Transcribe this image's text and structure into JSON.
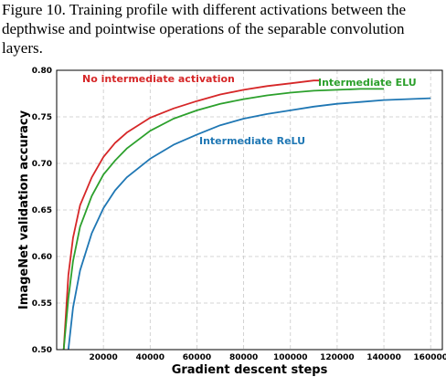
{
  "caption": "Figure 10. Training profile with different activations between the depthwise and pointwise operations of the separable convolution layers.",
  "chart_data": {
    "type": "line",
    "xlabel": "Gradient descent steps",
    "ylabel": "ImageNet validation accuracy",
    "xlim": [
      0,
      165000
    ],
    "ylim": [
      0.5,
      0.8
    ],
    "xticks": [
      20000,
      40000,
      60000,
      80000,
      100000,
      120000,
      140000,
      160000
    ],
    "yticks": [
      0.5,
      0.55,
      0.6,
      0.65,
      0.7,
      0.75,
      0.8
    ],
    "xtick_labels": [
      "20000",
      "40000",
      "60000",
      "80000",
      "100000",
      "120000",
      "140000",
      "160000"
    ],
    "ytick_labels": [
      "0.50",
      "0.55",
      "0.60",
      "0.65",
      "0.70",
      "0.75",
      "0.80"
    ],
    "grid": true,
    "series": [
      {
        "name": "No intermediate activation",
        "color": "#d62728",
        "x": [
          3000,
          5000,
          7000,
          10000,
          15000,
          20000,
          25000,
          30000,
          40000,
          50000,
          60000,
          70000,
          80000,
          90000,
          100000,
          110000,
          113000
        ],
        "y": [
          0.5,
          0.58,
          0.62,
          0.655,
          0.685,
          0.707,
          0.722,
          0.733,
          0.749,
          0.759,
          0.767,
          0.774,
          0.779,
          0.783,
          0.786,
          0.789,
          0.789
        ]
      },
      {
        "name": "Intermediate ELU",
        "color": "#2ca02c",
        "x": [
          3000,
          5000,
          7000,
          10000,
          15000,
          20000,
          25000,
          30000,
          40000,
          50000,
          60000,
          70000,
          80000,
          90000,
          100000,
          110000,
          120000,
          130000,
          140000
        ],
        "y": [
          0.5,
          0.555,
          0.595,
          0.632,
          0.665,
          0.688,
          0.703,
          0.716,
          0.735,
          0.748,
          0.757,
          0.764,
          0.769,
          0.773,
          0.776,
          0.778,
          0.779,
          0.78,
          0.78
        ]
      },
      {
        "name": "Intermediate ReLU",
        "color": "#1f77b4",
        "x": [
          5000,
          7000,
          10000,
          15000,
          20000,
          25000,
          30000,
          40000,
          50000,
          60000,
          70000,
          80000,
          90000,
          100000,
          110000,
          120000,
          130000,
          140000,
          150000,
          160000
        ],
        "y": [
          0.5,
          0.545,
          0.585,
          0.625,
          0.652,
          0.671,
          0.685,
          0.705,
          0.72,
          0.731,
          0.741,
          0.748,
          0.753,
          0.757,
          0.761,
          0.764,
          0.766,
          0.768,
          0.769,
          0.77
        ]
      }
    ]
  }
}
